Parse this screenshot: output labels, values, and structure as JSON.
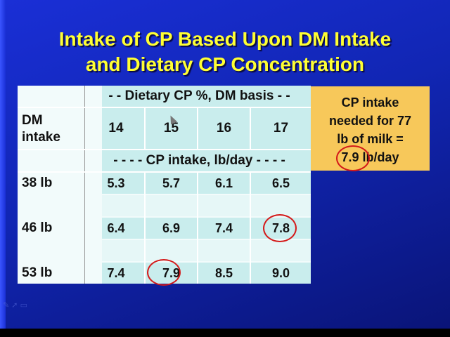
{
  "slide": {
    "title_line1": "Intake of CP Based Upon DM Intake",
    "title_line2": "and Dietary CP Concentration"
  },
  "table": {
    "corner_label_line1": "DM",
    "corner_label_line2": "intake",
    "header_top": "- - Dietary CP %, DM basis - -",
    "cp_levels": [
      "14",
      "15",
      "16",
      "17"
    ],
    "header_mid": "- - - - CP intake, lb/day - - - -",
    "rows": [
      {
        "label": "38 lb",
        "values": [
          "5.3",
          "5.7",
          "6.1",
          "6.5"
        ]
      },
      {
        "label": "46 lb",
        "values": [
          "6.4",
          "6.9",
          "7.4",
          "7.8"
        ]
      },
      {
        "label": "53 lb",
        "values": [
          "7.4",
          "7.9",
          "8.5",
          "9.0"
        ]
      }
    ]
  },
  "note": {
    "line1": "CP intake",
    "line2": "needed for 77",
    "line3": "lb of milk =",
    "value": "7.9",
    "unit": " lb/day"
  },
  "colors": {
    "title": "#ffff33",
    "background": "#1a2fd6",
    "table_band": "#c9eded",
    "note_bg": "#f7c85a",
    "circle": "#d41a1a"
  },
  "icons": [
    "pen-icon",
    "arrow-icon",
    "menu-icon"
  ]
}
